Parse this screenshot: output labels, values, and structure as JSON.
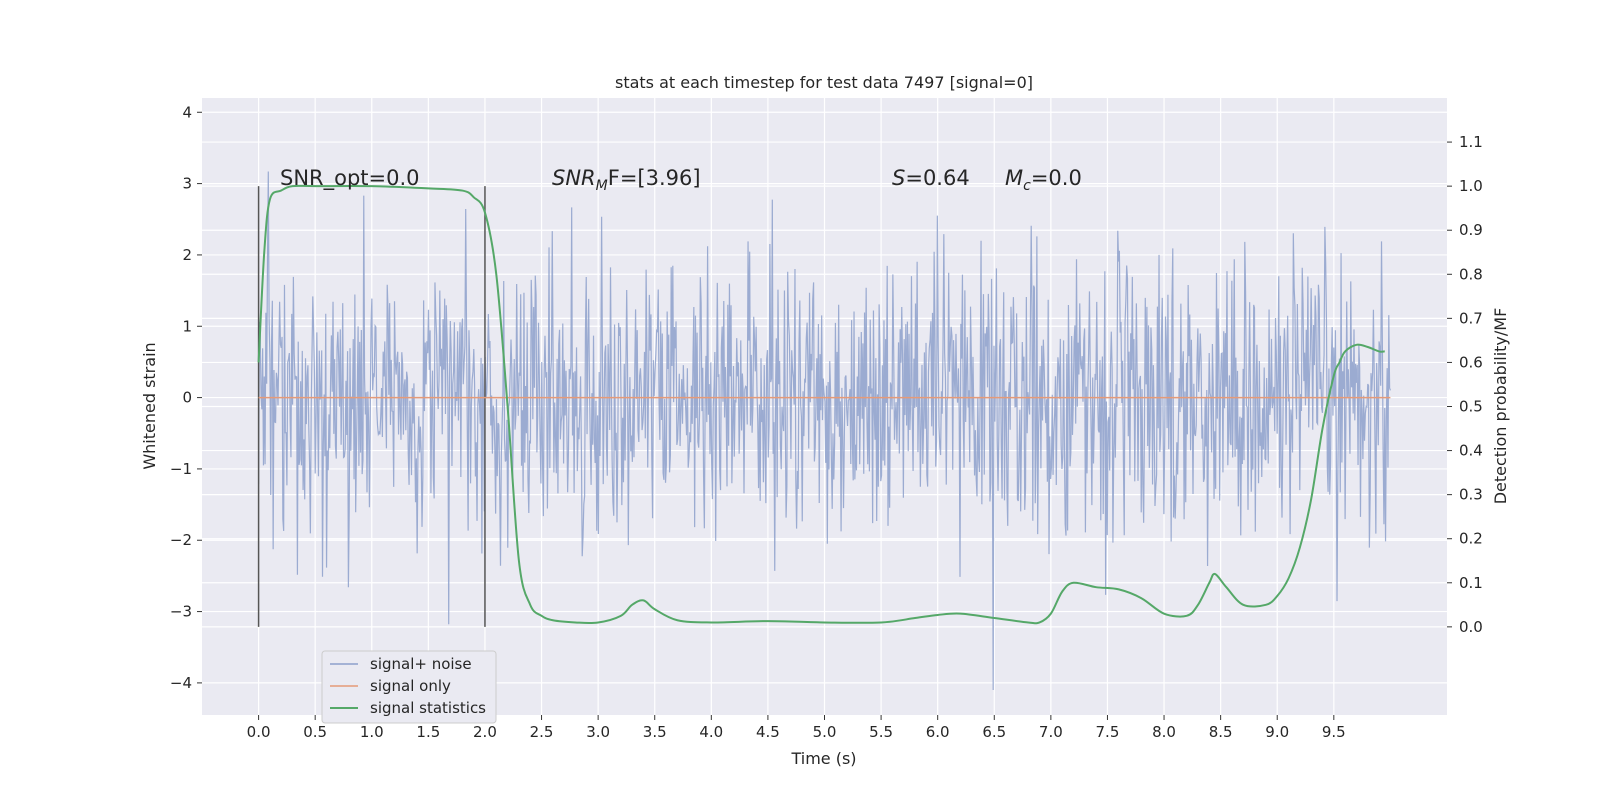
{
  "chart_data": {
    "type": "line",
    "title": "stats at each timestep for test data 7497 [signal=0]",
    "xlabel": "Time (s)",
    "ylabel_left": "Whitened strain",
    "ylabel_right": "Detection probability/MF",
    "xlim": [
      -0.5,
      10.5
    ],
    "ylim_left": [
      -4.45,
      4.2
    ],
    "ylim_right": [
      -0.2,
      1.2
    ],
    "xticks": [
      "0.0",
      "0.5",
      "1.0",
      "1.5",
      "2.0",
      "2.5",
      "3.0",
      "3.5",
      "4.0",
      "4.5",
      "5.0",
      "5.5",
      "6.0",
      "6.5",
      "7.0",
      "7.5",
      "8.0",
      "8.5",
      "9.0",
      "9.5"
    ],
    "yticks_left": [
      "4",
      "3",
      "2",
      "1",
      "0",
      "−1",
      "−2",
      "−3",
      "−4"
    ],
    "yticks_right": [
      "1.1",
      "1.0",
      "0.9",
      "0.8",
      "0.7",
      "0.6",
      "0.5",
      "0.4",
      "0.3",
      "0.2",
      "0.1",
      "0.0"
    ],
    "grid": true,
    "legend_position": "lower-left",
    "annotations": {
      "snr_opt": "SNR_opt=0.0",
      "snr_mf_main": "SNR",
      "snr_mf_sub": "M",
      "snr_mf_rest": "F=[3.96]",
      "s_main": "S",
      "s_rest": "=0.64",
      "mc_main": "M",
      "mc_sub": "c",
      "mc_rest": "=0.0"
    },
    "window_markers_x": [
      0.0,
      2.0
    ],
    "series": [
      {
        "name": "signal+ noise",
        "color": "#8da0cb",
        "axis": "left",
        "t_range": [
          0.0,
          10.0
        ],
        "noise_std": 0.95,
        "y_min": -4.1,
        "y_max": 3.8,
        "samples": 1400
      },
      {
        "name": "signal only",
        "color": "#e59a78",
        "axis": "left",
        "x": [
          0.0,
          10.0
        ],
        "y": [
          0.0,
          0.0
        ]
      },
      {
        "name": "signal statistics",
        "color": "#55a868",
        "axis": "right",
        "x": [
          0.0,
          0.05,
          0.1,
          0.2,
          0.3,
          0.5,
          1.0,
          1.5,
          1.8,
          1.9,
          2.0,
          2.1,
          2.2,
          2.3,
          2.4,
          2.5,
          2.6,
          2.8,
          3.0,
          3.2,
          3.3,
          3.4,
          3.5,
          3.7,
          4.0,
          4.5,
          5.0,
          5.5,
          5.8,
          6.0,
          6.2,
          6.5,
          6.8,
          6.9,
          7.0,
          7.1,
          7.2,
          7.4,
          7.6,
          7.8,
          8.0,
          8.2,
          8.3,
          8.4,
          8.45,
          8.55,
          8.7,
          8.9,
          9.0,
          9.1,
          9.2,
          9.3,
          9.4,
          9.5,
          9.55,
          9.6,
          9.7,
          9.8,
          9.9,
          9.95
        ],
        "y": [
          0.6,
          0.85,
          0.97,
          0.99,
          1.0,
          1.0,
          1.0,
          0.995,
          0.99,
          0.975,
          0.94,
          0.8,
          0.5,
          0.15,
          0.05,
          0.025,
          0.015,
          0.01,
          0.01,
          0.025,
          0.05,
          0.06,
          0.04,
          0.015,
          0.01,
          0.013,
          0.01,
          0.01,
          0.02,
          0.027,
          0.03,
          0.02,
          0.01,
          0.01,
          0.03,
          0.08,
          0.1,
          0.09,
          0.085,
          0.065,
          0.03,
          0.025,
          0.05,
          0.1,
          0.12,
          0.09,
          0.05,
          0.05,
          0.07,
          0.11,
          0.18,
          0.29,
          0.45,
          0.57,
          0.6,
          0.625,
          0.64,
          0.635,
          0.625,
          0.625
        ]
      }
    ]
  }
}
